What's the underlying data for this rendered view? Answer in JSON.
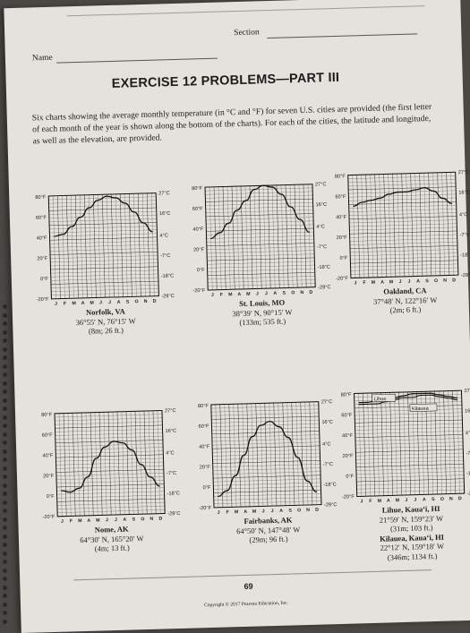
{
  "header": {
    "name_label": "Name",
    "section_label": "Section"
  },
  "title": "EXERCISE 12 PROBLEMS—PART III",
  "intro": "Six charts showing the average monthly temperature (in °C and °F) for seven U.S. cities are provided (the first letter of each month of the year is shown along the bottom of the charts). For each of the cities, the latitude and longitude, as well as the elevation, are provided.",
  "axis": {
    "celsius_labels": [
      "27°C",
      "16°C",
      "4°C",
      "-7°C",
      "-18°C",
      "-29°C"
    ],
    "fahrenheit_labels": [
      "80°F",
      "60°F",
      "40°F",
      "20°F",
      "0°F",
      "-20°F"
    ],
    "months": [
      "J",
      "F",
      "M",
      "A",
      "M",
      "J",
      "J",
      "A",
      "S",
      "O",
      "N",
      "D"
    ]
  },
  "charts": [
    {
      "city": "Norfolk, VA",
      "coords": "36°55′ N, 76°15′ W",
      "elevation": "(8m; 26 ft.)",
      "chart_data": {
        "type": "line",
        "x": [
          "J",
          "F",
          "M",
          "A",
          "M",
          "J",
          "J",
          "A",
          "S",
          "O",
          "N",
          "D"
        ],
        "series": [
          {
            "values": [
              5,
              6,
              10,
              15,
              20,
              24,
              26,
              25,
              22,
              17,
              11,
              6
            ]
          }
        ],
        "ylim": [
          -29,
          27
        ]
      }
    },
    {
      "city": "St. Louis, MO",
      "coords": "38°39′ N, 90°15′ W",
      "elevation": "(133m; 535 ft.)",
      "chart_data": {
        "type": "line",
        "x": [
          "J",
          "F",
          "M",
          "A",
          "M",
          "J",
          "J",
          "A",
          "S",
          "O",
          "N",
          "D"
        ],
        "series": [
          {
            "values": [
              -1,
              2,
              7,
              14,
              19,
              25,
              27,
              26,
              22,
              15,
              8,
              1
            ]
          }
        ],
        "ylim": [
          -29,
          27
        ]
      }
    },
    {
      "city": "Oakland, CA",
      "coords": "37°48′ N, 122°16′ W",
      "elevation": "(2m; 6 ft.)",
      "chart_data": {
        "type": "line",
        "x": [
          "J",
          "F",
          "M",
          "A",
          "M",
          "J",
          "J",
          "A",
          "S",
          "O",
          "N",
          "D"
        ],
        "series": [
          {
            "values": [
              10,
              12,
              13,
              14,
              16,
              17,
              17,
              18,
              19,
              17,
              13,
              10
            ]
          }
        ],
        "ylim": [
          -29,
          27
        ]
      }
    },
    {
      "city": "Nome, AK",
      "coords": "64°30′ N, 165°20′ W",
      "elevation": "(4m; 13 ft.)",
      "chart_data": {
        "type": "line",
        "x": [
          "J",
          "F",
          "M",
          "A",
          "M",
          "J",
          "J",
          "A",
          "S",
          "O",
          "N",
          "D"
        ],
        "series": [
          {
            "values": [
              -15,
              -16,
              -14,
              -8,
              2,
              8,
              11,
              10,
              6,
              -2,
              -9,
              -14
            ]
          }
        ],
        "ylim": [
          -29,
          27
        ]
      }
    },
    {
      "city": "Fairbanks, AK",
      "coords": "64°50′ N, 147°48′ W",
      "elevation": "(29m; 96 ft.)",
      "chart_data": {
        "type": "line",
        "x": [
          "J",
          "F",
          "M",
          "A",
          "M",
          "J",
          "J",
          "A",
          "S",
          "O",
          "N",
          "D"
        ],
        "series": [
          {
            "values": [
              -23,
              -20,
              -12,
              -1,
              9,
              15,
              17,
              14,
              8,
              -3,
              -16,
              -22
            ]
          }
        ],
        "ylim": [
          -29,
          27
        ]
      }
    },
    {
      "city": "Lihue, Kauaʻi, HI",
      "coords": "21°59′ N, 159°23′ W",
      "elevation": "(31m; 103 ft.)",
      "city2": "Kilauea, Kauaʻi, HI",
      "coords2": "22°12′ N, 159°18′ W",
      "elevation2": "(346m; 1134 ft.)",
      "legend": [
        "Lihue",
        "Kilauea"
      ],
      "chart_data": {
        "type": "line",
        "x": [
          "J",
          "F",
          "M",
          "A",
          "M",
          "J",
          "J",
          "A",
          "S",
          "O",
          "N",
          "D"
        ],
        "series": [
          {
            "name": "Lihue",
            "values": [
              22,
              22,
              23,
              23,
              24,
              25,
              26,
              26,
              26,
              25,
              24,
              23
            ]
          },
          {
            "name": "Kilauea",
            "values": [
              21,
              21,
              21,
              22,
              23,
              24,
              24,
              25,
              25,
              24,
              23,
              22
            ]
          }
        ],
        "ylim": [
          -29,
          27
        ]
      }
    }
  ],
  "page_number": "69",
  "copyright": "Copyright © 2017 Pearson Education, Inc."
}
